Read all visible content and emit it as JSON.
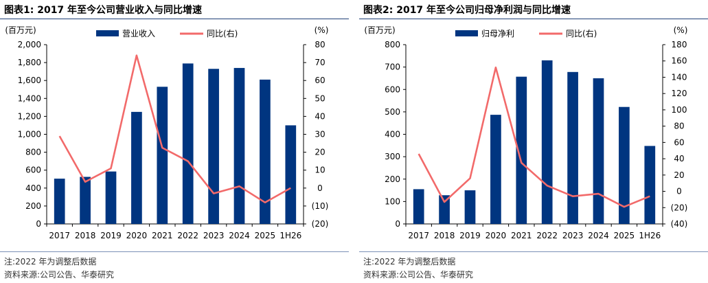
{
  "charts": [
    {
      "title": "图表1:  2017 年至今公司营业收入与同比增速",
      "unit_left": "(百万元)",
      "unit_right": "(%)",
      "note": "注:2022 年为调整后数据",
      "source": "资料来源:公司公告、华泰研究"
    },
    {
      "title": "图表2:  2017 年至今公司归母净利润与同比增速",
      "unit_left": "(百万元)",
      "unit_right": "(%)",
      "note": "注:2022 年为调整后数据",
      "source": "资料来源:公司公告、华泰研究"
    }
  ],
  "colors": {
    "bar": "#003580",
    "line": "#f26a6a",
    "rule": "#1f3f77"
  },
  "chart_data": [
    {
      "type": "bar",
      "categories": [
        "2017",
        "2018",
        "2019",
        "2020",
        "2021",
        "2022",
        "2023",
        "2024",
        "2025",
        "1H26"
      ],
      "series": [
        {
          "name": "营业收入",
          "type": "bar",
          "axis": "left",
          "values": [
            505,
            525,
            585,
            1250,
            1530,
            1790,
            1730,
            1740,
            1610,
            1100
          ]
        },
        {
          "name": "同比(右)",
          "type": "line",
          "axis": "right",
          "values": [
            29,
            3.5,
            11,
            74,
            22.5,
            15,
            -3,
            1,
            -8,
            0
          ]
        }
      ],
      "ylim_left": [
        0,
        2000
      ],
      "ylim_right": [
        -20,
        80
      ],
      "yticks_left": [
        0,
        200,
        400,
        600,
        800,
        1000,
        1200,
        1400,
        1600,
        1800,
        2000
      ],
      "yticks_left_labels": [
        "0",
        "200",
        "400",
        "600",
        "800",
        "1,000",
        "1,200",
        "1,400",
        "1,600",
        "1,800",
        "2,000"
      ],
      "yticks_right": [
        -20,
        -10,
        0,
        10,
        20,
        30,
        40,
        50,
        60,
        70,
        80
      ],
      "yticks_right_labels": [
        "(20)",
        "(10)",
        "0",
        "10",
        "20",
        "30",
        "40",
        "50",
        "60",
        "70",
        "80"
      ],
      "legend_placement": "top",
      "grid": false
    },
    {
      "type": "bar",
      "categories": [
        "2017",
        "2018",
        "2019",
        "2020",
        "2021",
        "2022",
        "2023",
        "2024",
        "2025",
        "1H26"
      ],
      "series": [
        {
          "name": "归母净利",
          "type": "bar",
          "axis": "left",
          "values": [
            155,
            128,
            150,
            487,
            657,
            730,
            678,
            650,
            522,
            348
          ]
        },
        {
          "name": "同比(右)",
          "type": "line",
          "axis": "right",
          "values": [
            46,
            -13,
            16,
            152,
            35,
            7,
            -6,
            -3,
            -19,
            -6
          ]
        }
      ],
      "ylim_left": [
        0,
        800
      ],
      "ylim_right": [
        -40,
        180
      ],
      "yticks_left": [
        0,
        100,
        200,
        300,
        400,
        500,
        600,
        700,
        800
      ],
      "yticks_left_labels": [
        "0",
        "100",
        "200",
        "300",
        "400",
        "500",
        "600",
        "700",
        "800"
      ],
      "yticks_right": [
        -40,
        -20,
        0,
        20,
        40,
        60,
        80,
        100,
        120,
        140,
        160,
        180
      ],
      "yticks_right_labels": [
        "(40)",
        "(20)",
        "0",
        "20",
        "40",
        "60",
        "80",
        "100",
        "120",
        "140",
        "160",
        "180"
      ],
      "legend_placement": "top",
      "grid": false
    }
  ]
}
